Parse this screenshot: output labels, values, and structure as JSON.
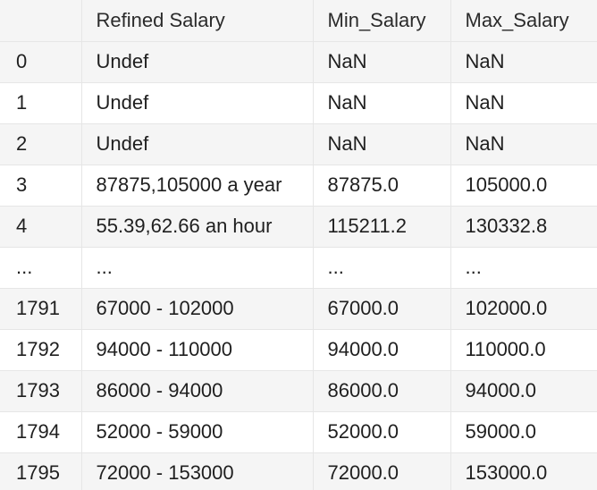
{
  "table": {
    "columns": [
      "",
      "Refined Salary",
      "Min_Salary",
      "Max_Salary"
    ],
    "rows": [
      [
        "0",
        "Undef",
        "NaN",
        "NaN"
      ],
      [
        "1",
        "Undef",
        "NaN",
        "NaN"
      ],
      [
        "2",
        "Undef",
        "NaN",
        "NaN"
      ],
      [
        "3",
        "87875,105000 a year",
        "87875.0",
        "105000.0"
      ],
      [
        "4",
        "55.39,62.66 an hour",
        "115211.2",
        "130332.8"
      ],
      [
        "...",
        "...",
        "...",
        "..."
      ],
      [
        "1791",
        "67000 - 102000",
        "67000.0",
        "102000.0"
      ],
      [
        "1792",
        "94000 - 110000",
        "94000.0",
        "110000.0"
      ],
      [
        "1793",
        "86000 - 94000",
        "86000.0",
        "94000.0"
      ],
      [
        "1794",
        "52000 - 59000",
        "52000.0",
        "59000.0"
      ],
      [
        "1795",
        "72000 - 153000",
        "72000.0",
        "153000.0"
      ]
    ]
  }
}
